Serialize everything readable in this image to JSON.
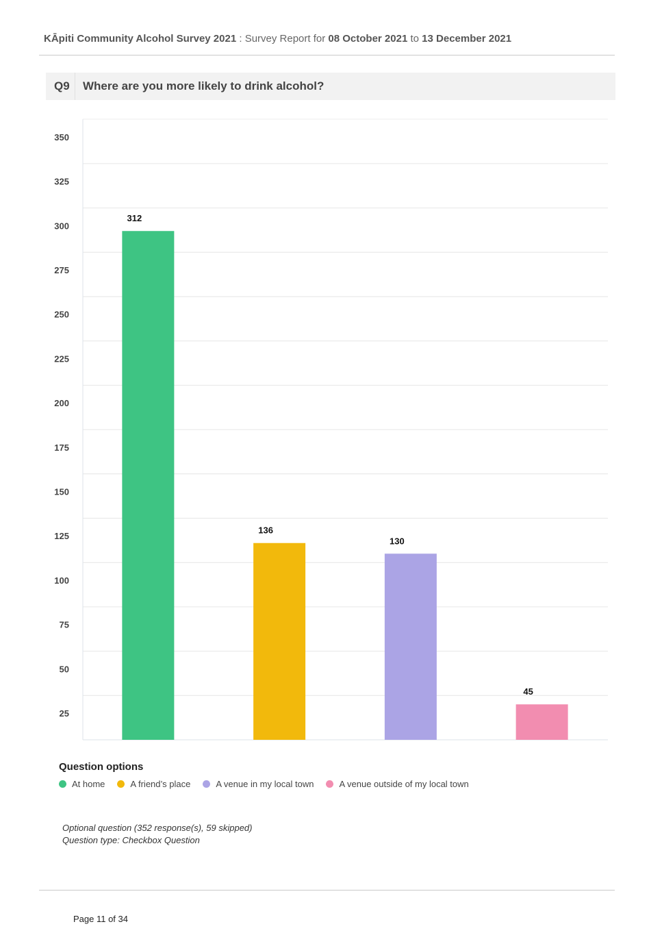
{
  "header": {
    "survey": "KĀpiti Community Alcohol Survey 2021",
    "separator": " : ",
    "report_prefix": "Survey Report for ",
    "start_date": "08 October 2021",
    "to": " to ",
    "end_date": "13 December 2021"
  },
  "question": {
    "number": "Q9",
    "title": "Where are you more likely to drink alcohol?"
  },
  "chart_data": {
    "type": "bar",
    "categories": [
      "At home",
      "A friend’s place",
      "A venue in my local town",
      "A venue outside of my local town"
    ],
    "values": [
      312,
      136,
      130,
      45
    ],
    "colors": [
      "#3ec483",
      "#f2b90c",
      "#aba4e5",
      "#f28db0"
    ],
    "ylim": [
      0,
      350
    ],
    "yticks": [
      25,
      50,
      75,
      100,
      125,
      150,
      175,
      200,
      225,
      250,
      275,
      300,
      325,
      350
    ],
    "grid": true,
    "legend_position": "bottom-left"
  },
  "legend": {
    "title": "Question options",
    "items": [
      {
        "label": "At home",
        "color": "#3ec483"
      },
      {
        "label": "A friend’s place",
        "color": "#f2b90c"
      },
      {
        "label": "A venue in my local town",
        "color": "#aba4e5"
      },
      {
        "label": "A venue outside of my local town",
        "color": "#f28db0"
      }
    ]
  },
  "notes": {
    "line1": "Optional question (352 response(s), 59 skipped)",
    "line2": "Question type: Checkbox Question"
  },
  "footer": {
    "page": "Page 11 of 34"
  }
}
